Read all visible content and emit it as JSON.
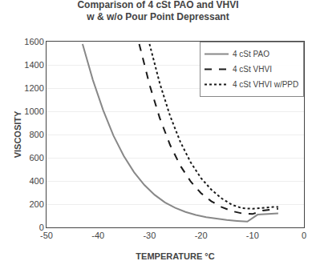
{
  "chart_data": {
    "type": "line",
    "title": "Comparison of 4 cSt PAO and VHVI\nw & w/o Pour Point Depressant",
    "x_label": "TEMPERATURE °C",
    "y_label": "VISCOSITY",
    "xlim": [
      -50,
      0
    ],
    "ylim": [
      0,
      1600
    ],
    "xticks": [
      -50,
      -40,
      -30,
      -20,
      -10,
      0
    ],
    "yticks": [
      0,
      200,
      400,
      600,
      800,
      1000,
      1200,
      1400,
      1600
    ],
    "grid": "y",
    "legend": "upper right",
    "series": [
      {
        "name": "4 cSt PAO",
        "color": "#888888",
        "line_style": "solid",
        "x": [
          -43,
          -41,
          -39,
          -37,
          -35,
          -33,
          -31,
          -29,
          -27,
          -25,
          -23,
          -21,
          -19,
          -17,
          -15,
          -13,
          -11,
          -9,
          -7,
          -5
        ],
        "values": [
          1580,
          1270,
          1010,
          790,
          615,
          475,
          365,
          280,
          215,
          168,
          133,
          107,
          88,
          74,
          63,
          56,
          50,
          110,
          115,
          120
        ]
      },
      {
        "name": "4 cSt VHVI",
        "color": "#1a1a1a",
        "line_style": "dashed",
        "x": [
          -32,
          -30,
          -28,
          -26,
          -24,
          -22,
          -20,
          -18,
          -16,
          -14,
          -12,
          -10,
          -8,
          -6,
          -5
        ],
        "values": [
          1580,
          1230,
          940,
          710,
          530,
          395,
          295,
          225,
          175,
          140,
          120,
          115,
          145,
          155,
          160
        ]
      },
      {
        "name": "4 cSt VHVI w/PPD",
        "color": "#1a1a1a",
        "line_style": "dotted",
        "x": [
          -30,
          -28,
          -26,
          -24,
          -22,
          -20,
          -18,
          -16,
          -14,
          -12,
          -10,
          -8,
          -6,
          -5
        ],
        "values": [
          1580,
          1240,
          960,
          735,
          560,
          425,
          325,
          250,
          195,
          165,
          160,
          170,
          175,
          175
        ]
      }
    ]
  }
}
